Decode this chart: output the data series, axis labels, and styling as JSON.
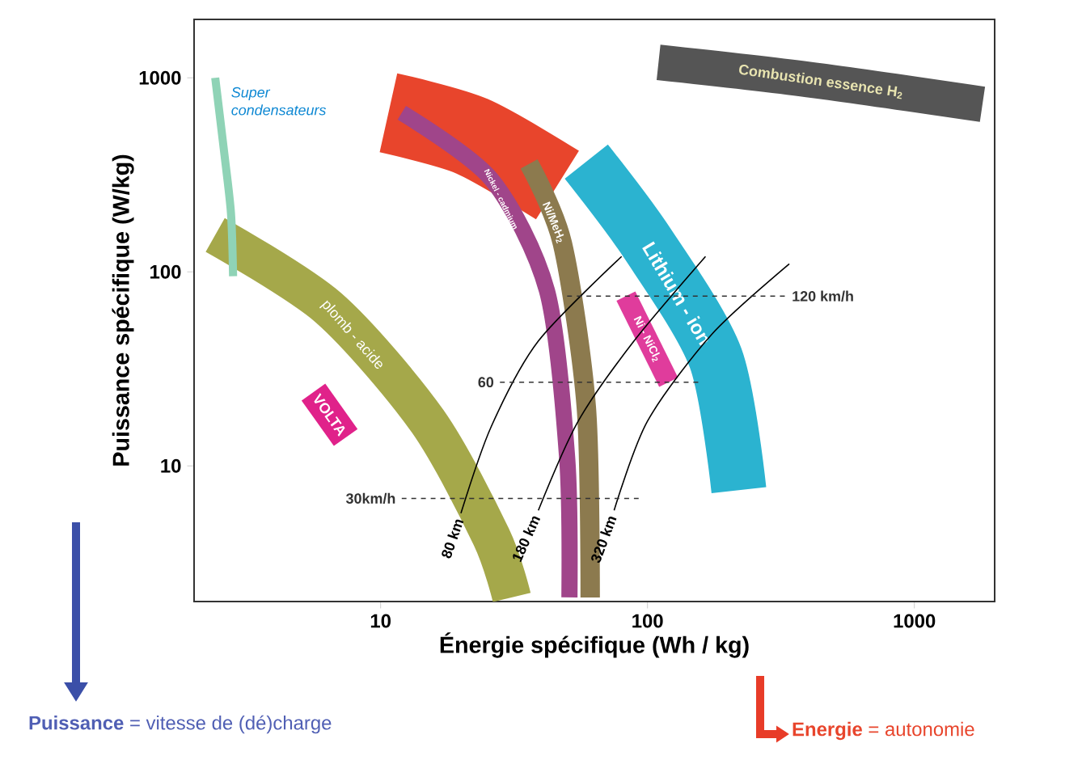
{
  "chart_data": {
    "type": "line",
    "xlabel": "Énergie spécifique (Wh / kg)",
    "ylabel": "Puissance spécifique (W/kg)",
    "log": "xy",
    "xlim": [
      2,
      2000
    ],
    "ylim": [
      2,
      2000
    ],
    "xticks": [
      10,
      100,
      1000
    ],
    "yticks": [
      10,
      100,
      1000
    ],
    "grid": false,
    "legend": false,
    "series": [
      {
        "color": "#e8452c",
        "x": [
          10.7,
          22,
          46
        ],
        "values": [
          660,
          500,
          280
        ]
      },
      {
        "name": "Nickel - cadmium",
        "color": "#a0458a",
        "x": [
          12,
          26,
          42,
          50,
          51
        ],
        "values": [
          660,
          300,
          80,
          11,
          2.1
        ]
      },
      {
        "name": "Ni/MeH$_{2}$",
        "color": "#8c7a4e",
        "x": [
          36,
          48,
          59,
          61
        ],
        "values": [
          360,
          140,
          20,
          2.1
        ]
      },
      {
        "name": "Lithium - ion",
        "color": "#2bb3d0",
        "x": [
          59,
          100,
          180,
          220
        ],
        "values": [
          370,
          140,
          36,
          7.5
        ]
      },
      {
        "name": "Ni - NiCl$_{2}$",
        "color": "#e03c9c",
        "x": [
          83,
          120
        ],
        "values": [
          75,
          27
        ]
      },
      {
        "name": "plomb - acide",
        "color": "#a5a84a",
        "x": [
          2.4,
          6.4,
          15,
          26,
          31
        ],
        "values": [
          155,
          65,
          17,
          4.3,
          2.1
        ]
      },
      {
        "name": "Super condensateurs",
        "color": "#8fd3b6",
        "x": [
          2.4,
          2.6,
          2.75,
          2.8
        ],
        "values": [
          1000,
          400,
          200,
          95
        ]
      },
      {
        "name": "VOLTA",
        "color": "#e0228a",
        "x": [
          5.6,
          7.4
        ],
        "values": [
          24,
          14
        ]
      },
      {
        "name": "Combustion essence H$_{2}$",
        "color": "#555555",
        "x": [
          110,
          400,
          1800
        ],
        "values": [
          1200,
          980,
          730
        ]
      },
      {
        "name": "80 km",
        "color": "#000000",
        "x": [
          20,
          26,
          39,
          80
        ],
        "values": [
          5.7,
          16,
          44,
          120
        ]
      },
      {
        "name": "180 km",
        "color": "#000000",
        "x": [
          39,
          55,
          89,
          165
        ],
        "values": [
          5.9,
          17,
          44,
          120
        ]
      },
      {
        "name": "320 km",
        "color": "#000000",
        "x": [
          75,
          100,
          175,
          340
        ],
        "values": [
          5.9,
          17,
          48,
          110
        ]
      },
      {
        "name": "30km/h",
        "color": "#333333",
        "line_style": "dashed",
        "x": [
          12,
          95
        ],
        "values": [
          6.8,
          6.8
        ]
      },
      {
        "name": "60",
        "color": "#333333",
        "line_style": "dashed",
        "x": [
          28,
          155
        ],
        "values": [
          27,
          27
        ]
      },
      {
        "name": "120 km/h",
        "color": "#333333",
        "line_style": "dashed",
        "x": [
          50,
          330
        ],
        "values": [
          75,
          75
        ]
      }
    ],
    "annotations": [
      "**Puissance** = vitesse de (dé)charge",
      "**Energie** = autonomie"
    ]
  }
}
